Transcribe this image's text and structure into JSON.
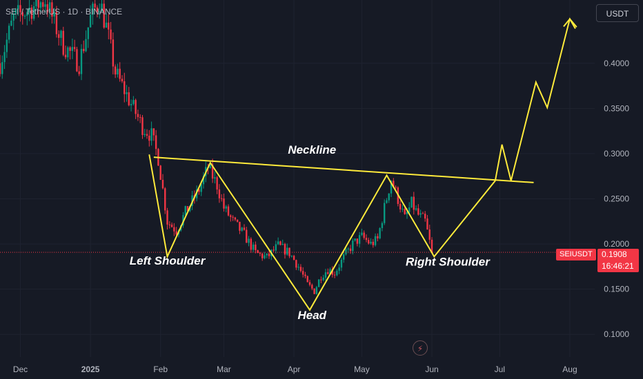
{
  "header": {
    "symbol_text": "SEI / TetherUS · 1D · BINANCE"
  },
  "currency_button": {
    "label": "USDT"
  },
  "price_tag": {
    "symbol": "SEIUSDT",
    "price": "0.1908",
    "countdown": "16:46:21"
  },
  "colors": {
    "up": "#089981",
    "down": "#f23645",
    "pattern": "#ffeb3b",
    "background": "#161a25"
  },
  "icons": {
    "flash": "lightning-icon"
  },
  "chart_data": {
    "type": "candlestick",
    "title": "SEI / TetherUS · 1D · BINANCE",
    "y_ticks": [
      "0.4000",
      "0.3500",
      "0.3000",
      "0.2500",
      "0.2000",
      "0.1500",
      "0.1000"
    ],
    "y_tick_values": [
      0.4,
      0.35,
      0.3,
      0.25,
      0.2,
      0.15,
      0.1
    ],
    "x_ticks": [
      "Dec",
      "2025",
      "Feb",
      "Mar",
      "Apr",
      "May",
      "Jun",
      "Jul",
      "Aug"
    ],
    "x_tick_dates": [
      "2024-12-01",
      "2025-01-01",
      "2025-02-01",
      "2025-03-01",
      "2025-04-01",
      "2025-05-01",
      "2025-06-01",
      "2025-07-01",
      "2025-08-01"
    ],
    "ylim": [
      0.075,
      0.47
    ],
    "xlim": [
      "2024-11-22",
      "2025-08-12"
    ],
    "last_price": 0.1908,
    "price_path": [
      [
        "2024-11-22",
        0.4
      ],
      [
        "2024-11-28",
        0.45
      ],
      [
        "2024-12-05",
        0.46
      ],
      [
        "2024-12-12",
        0.47
      ],
      [
        "2024-12-20",
        0.42
      ],
      [
        "2024-12-27",
        0.4
      ],
      [
        "2025-01-01",
        0.45
      ],
      [
        "2025-01-05",
        0.47
      ],
      [
        "2025-01-08",
        0.44
      ],
      [
        "2025-01-12",
        0.39
      ],
      [
        "2025-01-18",
        0.36
      ],
      [
        "2025-01-24",
        0.33
      ],
      [
        "2025-01-28",
        0.32
      ],
      [
        "2025-01-31",
        0.295
      ],
      [
        "2025-02-02",
        0.26
      ],
      [
        "2025-02-04",
        0.225
      ],
      [
        "2025-02-08",
        0.215
      ],
      [
        "2025-02-12",
        0.235
      ],
      [
        "2025-02-18",
        0.26
      ],
      [
        "2025-02-22",
        0.285
      ],
      [
        "2025-02-26",
        0.265
      ],
      [
        "2025-03-01",
        0.24
      ],
      [
        "2025-03-05",
        0.225
      ],
      [
        "2025-03-10",
        0.21
      ],
      [
        "2025-03-15",
        0.19
      ],
      [
        "2025-03-20",
        0.185
      ],
      [
        "2025-03-25",
        0.198
      ],
      [
        "2025-03-30",
        0.19
      ],
      [
        "2025-04-03",
        0.175
      ],
      [
        "2025-04-07",
        0.155
      ],
      [
        "2025-04-10",
        0.148
      ],
      [
        "2025-04-13",
        0.165
      ],
      [
        "2025-04-16",
        0.172
      ],
      [
        "2025-04-19",
        0.168
      ],
      [
        "2025-04-23",
        0.185
      ],
      [
        "2025-04-27",
        0.2
      ],
      [
        "2025-05-01",
        0.208
      ],
      [
        "2025-05-05",
        0.2
      ],
      [
        "2025-05-08",
        0.205
      ],
      [
        "2025-05-11",
        0.24
      ],
      [
        "2025-05-14",
        0.272
      ],
      [
        "2025-05-17",
        0.25
      ],
      [
        "2025-05-20",
        0.228
      ],
      [
        "2025-05-23",
        0.245
      ],
      [
        "2025-05-26",
        0.232
      ],
      [
        "2025-05-29",
        0.225
      ],
      [
        "2025-06-01",
        0.1908
      ]
    ],
    "pattern": {
      "points": [
        [
          "2025-01-27",
          0.299
        ],
        [
          "2025-02-04",
          0.186
        ],
        [
          "2025-02-23",
          0.29
        ],
        [
          "2025-04-08",
          0.127
        ],
        [
          "2025-05-12",
          0.276
        ],
        [
          "2025-06-02",
          0.186
        ],
        [
          "2025-06-29",
          0.27
        ],
        [
          "2025-07-02",
          0.31
        ],
        [
          "2025-07-06",
          0.27
        ],
        [
          "2025-07-17",
          0.379
        ],
        [
          "2025-07-22",
          0.351
        ],
        [
          "2025-08-01",
          0.449
        ],
        [
          "2025-08-04",
          0.44
        ]
      ],
      "neckline": [
        [
          "2025-01-29",
          0.296
        ],
        [
          "2025-07-16",
          0.268
        ]
      ],
      "labels": [
        {
          "text": "Neckline",
          "date": "2025-04-09",
          "value": 0.3
        },
        {
          "text": "Left Shoulder",
          "date": "2025-02-04",
          "value": 0.177
        },
        {
          "text": "Head",
          "date": "2025-04-09",
          "value": 0.117
        },
        {
          "text": "Right Shoulder",
          "date": "2025-06-08",
          "value": 0.176
        }
      ]
    }
  }
}
